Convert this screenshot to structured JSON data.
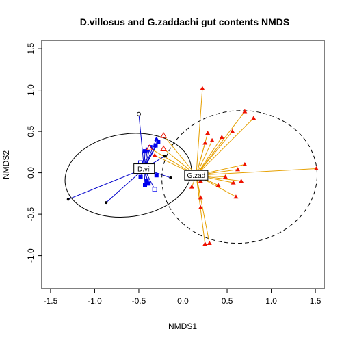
{
  "chart_data": {
    "type": "scatter",
    "title": "D.villosus and G.zaddachi gut contents NMDS",
    "xlabel": "NMDS1",
    "ylabel": "NMDS2",
    "xlim": [
      -1.6,
      1.6
    ],
    "ylim": [
      -1.4,
      1.6
    ],
    "xticks": [
      "-1.5",
      "-1.0",
      "-0.5",
      "0.0",
      "0.5",
      "1.0",
      "1.5"
    ],
    "yticks": [
      "-1.0",
      "-0.5",
      "0.0",
      "0.5",
      "1.0",
      "1.5"
    ],
    "colors": {
      "dvil_line": "#0000cc",
      "dvil_point": "#0000ee",
      "gzad_line": "#e6a000",
      "gzad_point": "#ee1100",
      "frame": "#000000"
    },
    "groups": [
      {
        "label": "D.vil",
        "centroid": [
          -0.44,
          0.05
        ],
        "ellipse": {
          "center": [
            -0.62,
            -0.03
          ],
          "rx": 0.72,
          "ry": 0.5,
          "rotation_deg": 8,
          "style": "solid"
        },
        "points": [
          [
            -0.5,
            0.71,
            "open-circle"
          ],
          [
            -1.3,
            -0.32,
            "dot"
          ],
          [
            -0.87,
            -0.36,
            "dot"
          ],
          [
            -0.3,
            0.41,
            "triangle"
          ],
          [
            -0.28,
            0.37,
            "square"
          ],
          [
            -0.31,
            0.33,
            "square"
          ],
          [
            -0.4,
            0.28,
            "square"
          ],
          [
            -0.37,
            0.31,
            "square"
          ],
          [
            -0.43,
            0.26,
            "square"
          ],
          [
            -0.21,
            0.2,
            "dot"
          ],
          [
            -0.48,
            0.12,
            "open-square"
          ],
          [
            -0.45,
            0.08,
            "square"
          ],
          [
            -0.42,
            0.04,
            "square"
          ],
          [
            -0.48,
            -0.05,
            "square"
          ],
          [
            -0.41,
            -0.1,
            "square"
          ],
          [
            -0.43,
            -0.15,
            "square"
          ],
          [
            -0.39,
            -0.13,
            "square"
          ],
          [
            -0.32,
            -0.2,
            "open-square"
          ],
          [
            -0.3,
            -0.03,
            "square"
          ],
          [
            -0.14,
            -0.06,
            "dot"
          ]
        ]
      },
      {
        "label": "G.zad",
        "centroid": [
          0.15,
          -0.03
        ],
        "ellipse": {
          "center": [
            0.64,
            -0.05
          ],
          "rx": 0.88,
          "ry": 0.8,
          "rotation_deg": 5,
          "style": "dashed"
        },
        "points": [
          [
            0.22,
            1.02,
            "triangle"
          ],
          [
            0.7,
            0.74,
            "triangle"
          ],
          [
            0.8,
            0.66,
            "triangle"
          ],
          [
            0.28,
            0.48,
            "triangle"
          ],
          [
            0.33,
            0.39,
            "triangle"
          ],
          [
            0.56,
            0.5,
            "triangle"
          ],
          [
            0.44,
            0.43,
            "triangle"
          ],
          [
            0.25,
            0.36,
            "triangle"
          ],
          [
            -0.22,
            0.45,
            "open-triangle"
          ],
          [
            -0.38,
            0.3,
            "open-triangle"
          ],
          [
            -0.22,
            0.29,
            "open-triangle"
          ],
          [
            -0.32,
            0.21,
            "triangle"
          ],
          [
            0.7,
            0.1,
            "triangle"
          ],
          [
            1.51,
            0.05,
            "triangle"
          ],
          [
            0.62,
            0.04,
            "triangle"
          ],
          [
            0.48,
            -0.05,
            "triangle"
          ],
          [
            0.66,
            -0.1,
            "triangle"
          ],
          [
            0.4,
            -0.15,
            "triangle"
          ],
          [
            0.57,
            -0.12,
            "triangle"
          ],
          [
            0.2,
            -0.1,
            "triangle"
          ],
          [
            0.1,
            -0.17,
            "triangle"
          ],
          [
            0.6,
            -0.29,
            "triangle"
          ],
          [
            0.2,
            -0.3,
            "triangle"
          ],
          [
            0.2,
            -0.42,
            "triangle"
          ],
          [
            0.25,
            -0.86,
            "triangle"
          ],
          [
            0.3,
            -0.85,
            "triangle"
          ]
        ]
      }
    ]
  }
}
